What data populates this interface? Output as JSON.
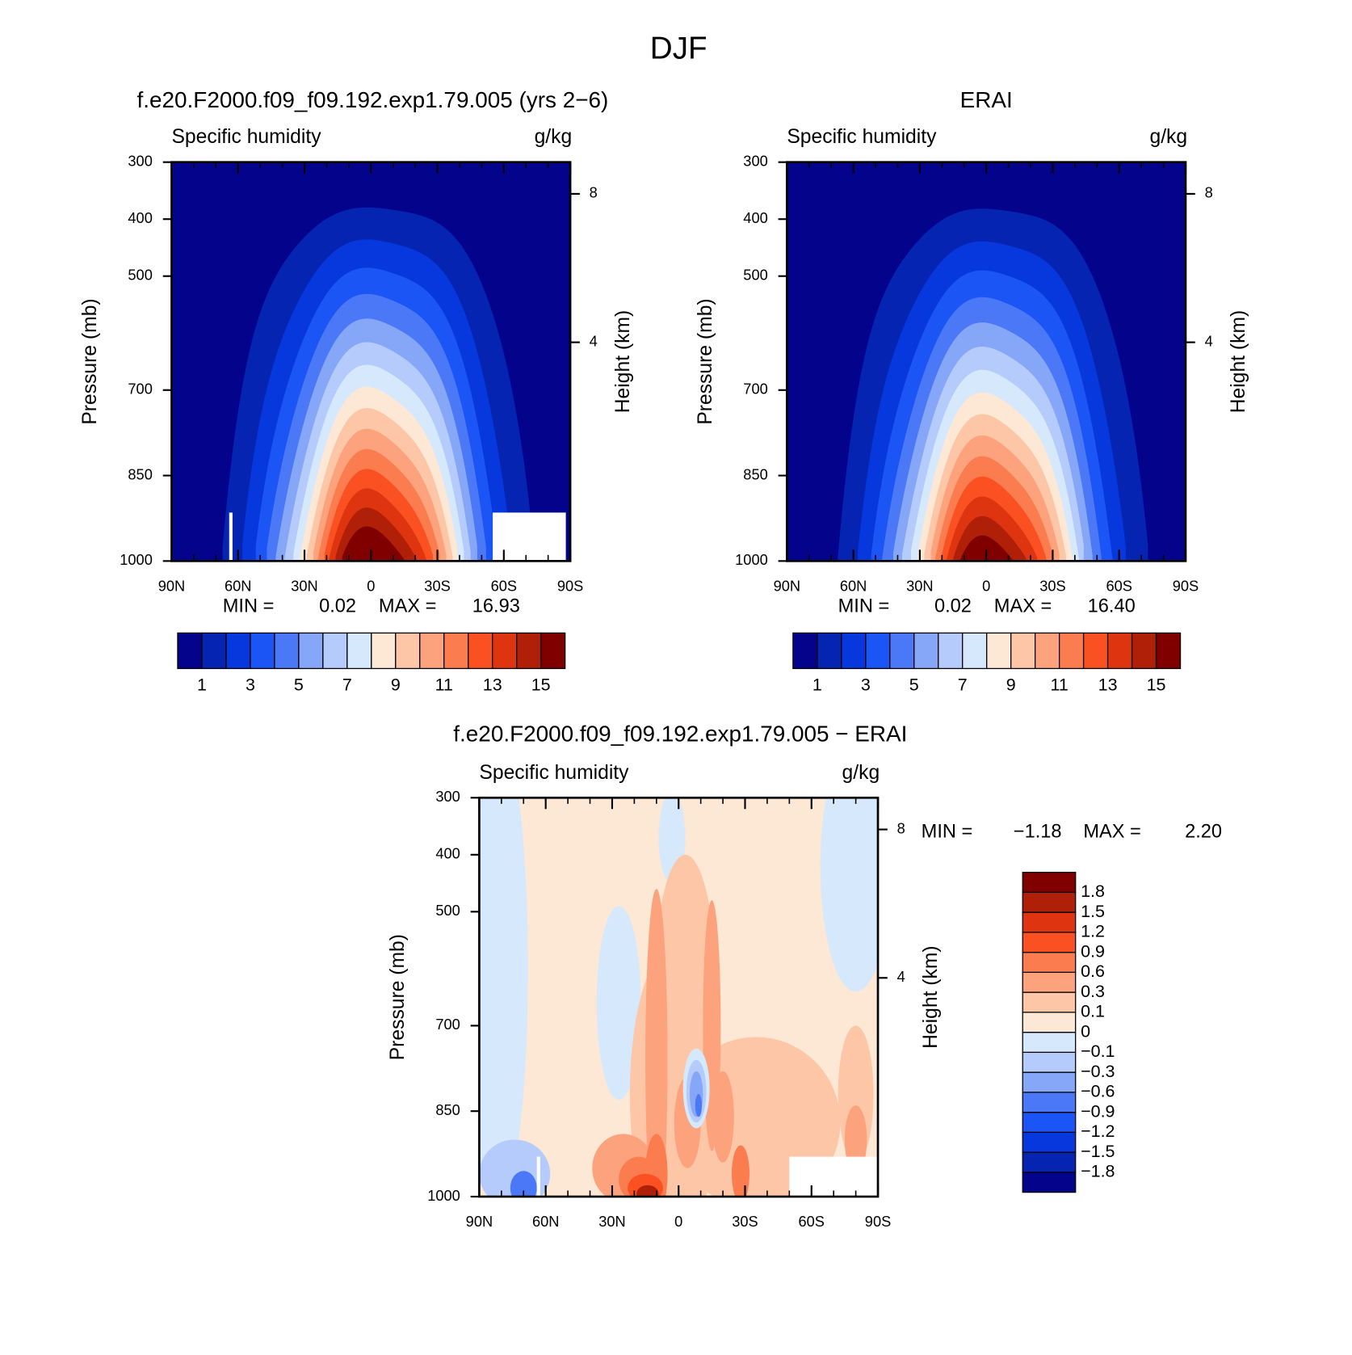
{
  "title": "DJF",
  "chart_data": [
    {
      "type": "contour",
      "title": "f.e20.F2000.f09_f09.192.exp1.79.005 (yrs 2−6)",
      "left_label": "Specific humidity",
      "right_label": "g/kg",
      "y_label": "Pressure (mb)",
      "y2_label": "Height (km)",
      "xlim": [
        90,
        -90
      ],
      "xticks": [
        {
          "value": 90,
          "label": "90N"
        },
        {
          "value": 60,
          "label": "60N"
        },
        {
          "value": 30,
          "label": "30N"
        },
        0,
        {
          "value": -30,
          "label": "30S"
        },
        {
          "value": -60,
          "label": "60S"
        },
        {
          "value": -90,
          "label": "90S"
        }
      ],
      "ylim": [
        300,
        1000
      ],
      "yticks": [
        300,
        400,
        500,
        700,
        850,
        1000
      ],
      "y2ticks": [
        8,
        4
      ],
      "min_label": "MIN =",
      "min": {
        "value": 0.02,
        "label": "0.02"
      },
      "max_label": "MAX =",
      "max": {
        "value": 16.93,
        "label": "16.93"
      },
      "levels": [
        1,
        2,
        3,
        4,
        5,
        6,
        7,
        8,
        9,
        10,
        11,
        12,
        13,
        14,
        15
      ],
      "colorbar_ticks": [
        1,
        3,
        5,
        7,
        9,
        11,
        13,
        15
      ],
      "colors": [
        "#03038c",
        "#0624b2",
        "#0638dd",
        "#1b55f5",
        "#4a78f6",
        "#86a6f8",
        "#b4cbfb",
        "#d6e9fc",
        "#fde7d5",
        "#fcc6a7",
        "#fca27c",
        "#fb7c4f",
        "#fb5021",
        "#de3510",
        "#b01f08",
        "#800000"
      ]
    },
    {
      "type": "contour",
      "title": "ERAI",
      "left_label": "Specific humidity",
      "right_label": "g/kg",
      "y_label": "Pressure (mb)",
      "y2_label": "Height (km)",
      "xlim": [
        90,
        -90
      ],
      "xticks": [
        {
          "value": 90,
          "label": "90N"
        },
        {
          "value": 60,
          "label": "60N"
        },
        {
          "value": 30,
          "label": "30N"
        },
        0,
        {
          "value": -30,
          "label": "30S"
        },
        {
          "value": -60,
          "label": "60S"
        },
        {
          "value": -90,
          "label": "90S"
        }
      ],
      "ylim": [
        300,
        1000
      ],
      "yticks": [
        300,
        400,
        500,
        700,
        850,
        1000
      ],
      "y2ticks": [
        8,
        4
      ],
      "min_label": "MIN =",
      "min": {
        "value": 0.02,
        "label": "0.02"
      },
      "max_label": "MAX =",
      "max": {
        "value": 16.4,
        "label": "16.40"
      },
      "levels": [
        1,
        2,
        3,
        4,
        5,
        6,
        7,
        8,
        9,
        10,
        11,
        12,
        13,
        14,
        15
      ],
      "colorbar_ticks": [
        1,
        3,
        5,
        7,
        9,
        11,
        13,
        15
      ],
      "colors": [
        "#03038c",
        "#0624b2",
        "#0638dd",
        "#1b55f5",
        "#4a78f6",
        "#86a6f8",
        "#b4cbfb",
        "#d6e9fc",
        "#fde7d5",
        "#fcc6a7",
        "#fca27c",
        "#fb7c4f",
        "#fb5021",
        "#de3510",
        "#b01f08",
        "#800000"
      ]
    },
    {
      "type": "contour-diff",
      "title": "f.e20.F2000.f09_f09.192.exp1.79.005 − ERAI",
      "left_label": "Specific humidity",
      "right_label": "g/kg",
      "y_label": "Pressure (mb)",
      "y2_label": "Height (km)",
      "xlim": [
        90,
        -90
      ],
      "xticks": [
        {
          "value": 90,
          "label": "90N"
        },
        {
          "value": 60,
          "label": "60N"
        },
        {
          "value": 30,
          "label": "30N"
        },
        0,
        {
          "value": -30,
          "label": "30S"
        },
        {
          "value": -60,
          "label": "60S"
        },
        {
          "value": -90,
          "label": "90S"
        }
      ],
      "ylim": [
        300,
        1000
      ],
      "yticks": [
        300,
        400,
        500,
        700,
        850,
        1000
      ],
      "y2ticks": [
        8,
        4
      ],
      "min_label": "MIN =",
      "min": {
        "value": -1.18,
        "label": "−1.18"
      },
      "max_label": "MAX =",
      "max": {
        "value": 2.2,
        "label": "2.20"
      },
      "levels": [
        -1.8,
        -1.5,
        -1.2,
        -0.9,
        -0.6,
        -0.3,
        -0.1,
        0,
        0.1,
        0.3,
        0.6,
        0.9,
        1.2,
        1.5,
        1.8
      ],
      "colorbar_ticks": [
        {
          "value": -1.8,
          "label": "−1.8"
        },
        {
          "value": -1.5,
          "label": "−1.5"
        },
        {
          "value": -1.2,
          "label": "−1.2"
        },
        {
          "value": -0.9,
          "label": "−0.9"
        },
        {
          "value": -0.6,
          "label": "−0.6"
        },
        {
          "value": -0.3,
          "label": "−0.3"
        },
        {
          "value": -0.1,
          "label": "−0.1"
        },
        0,
        0.1,
        0.3,
        0.6,
        0.9,
        1.2,
        1.5,
        1.8
      ],
      "colors": [
        "#03038c",
        "#0624b2",
        "#0638dd",
        "#1b55f5",
        "#4a78f6",
        "#86a6f8",
        "#b4cbfb",
        "#d6e9fc",
        "#fde7d5",
        "#fcc6a7",
        "#fca27c",
        "#fb7c4f",
        "#fb5021",
        "#de3510",
        "#b01f08",
        "#800000"
      ]
    }
  ]
}
